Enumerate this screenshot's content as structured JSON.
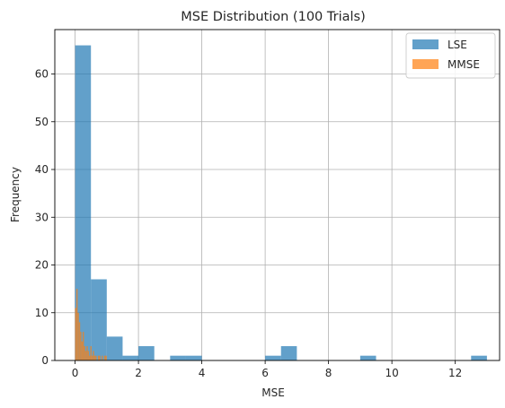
{
  "chart_data": {
    "type": "bar",
    "title": "MSE Distribution (100 Trials)",
    "xlabel": "MSE",
    "ylabel": "Frequency",
    "xlim": [
      -0.64,
      13.4
    ],
    "ylim": [
      0,
      69.3
    ],
    "xticks": [
      0,
      2,
      4,
      6,
      8,
      10,
      12
    ],
    "yticks": [
      0,
      10,
      20,
      30,
      40,
      50,
      60
    ],
    "grid": true,
    "legend_position": "top-right",
    "series": [
      {
        "name": "LSE",
        "color": "#1f77b4",
        "alpha": 0.7,
        "bin_edges": [
          0.0,
          0.5,
          1.0,
          1.5,
          2.0,
          2.5,
          3.0,
          3.5,
          4.0,
          4.5,
          5.0,
          5.5,
          6.0,
          6.5,
          7.0,
          7.5,
          8.0,
          8.5,
          9.0,
          9.5,
          10.0,
          10.5,
          11.0,
          11.5,
          12.0,
          12.5,
          13.0
        ],
        "counts": [
          66,
          17,
          5,
          1,
          3,
          0,
          1,
          1,
          0,
          0,
          0,
          0,
          1,
          3,
          0,
          0,
          0,
          0,
          1,
          0,
          0,
          0,
          0,
          0,
          0,
          1
        ]
      },
      {
        "name": "MMSE",
        "color": "#ff7f0e",
        "alpha": 0.7,
        "bin_edges": [
          0.0,
          0.04,
          0.08,
          0.12,
          0.16,
          0.2,
          0.24,
          0.28,
          0.32,
          0.36,
          0.4,
          0.44,
          0.48,
          0.52,
          0.56,
          0.6,
          0.64,
          0.68,
          0.72,
          0.76,
          0.8,
          0.84,
          0.88,
          0.92,
          0.96,
          1.0
        ],
        "counts": [
          11,
          15,
          10,
          8,
          6,
          4,
          6,
          3,
          2,
          3,
          2,
          1,
          3,
          1,
          2,
          1,
          1,
          0,
          1,
          1,
          0,
          1,
          0,
          1,
          1
        ]
      }
    ]
  }
}
